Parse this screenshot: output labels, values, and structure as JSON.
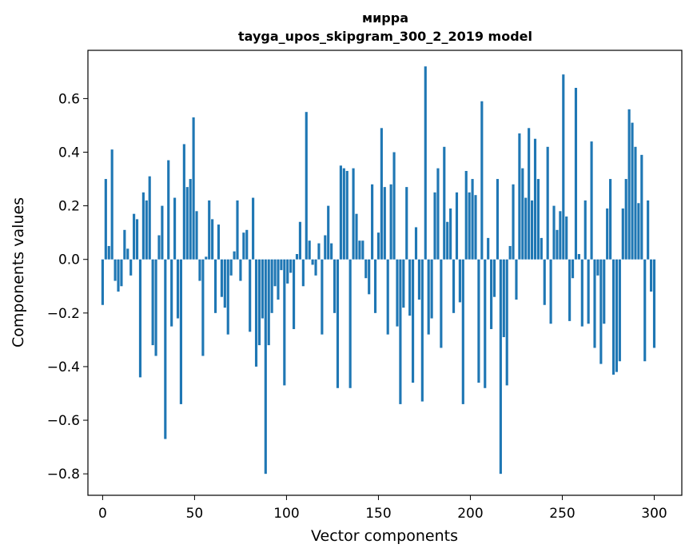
{
  "chart_data": {
    "type": "bar",
    "title": "мирра",
    "subtitle": "tayga_upos_skipgram_300_2_2019 model",
    "xlabel": "Vector components",
    "ylabel": "Components values",
    "xlim": [
      -8,
      315
    ],
    "ylim": [
      -0.88,
      0.78
    ],
    "xticks": [
      0,
      50,
      100,
      150,
      200,
      250,
      300
    ],
    "yticks": [
      -0.8,
      -0.6,
      -0.4,
      -0.2,
      0.0,
      0.2,
      0.4,
      0.6
    ],
    "xtick_labels": [
      "0",
      "50",
      "100",
      "150",
      "200",
      "250",
      "300"
    ],
    "ytick_labels": [
      "−0.8",
      "−0.6",
      "−0.4",
      "−0.2",
      "0.0",
      "0.2",
      "0.4",
      "0.6"
    ],
    "grid": false,
    "bar_color": "#1f77b4",
    "values": [
      -0.17,
      0.3,
      0.05,
      0.41,
      -0.08,
      -0.12,
      -0.1,
      0.11,
      0.04,
      -0.06,
      0.17,
      0.15,
      -0.44,
      0.25,
      0.22,
      0.31,
      -0.32,
      -0.36,
      0.09,
      0.2,
      -0.67,
      0.37,
      -0.25,
      0.23,
      -0.22,
      -0.54,
      0.43,
      0.27,
      0.3,
      0.53,
      0.18,
      -0.08,
      -0.36,
      0.01,
      0.22,
      0.15,
      -0.2,
      0.13,
      -0.14,
      -0.18,
      -0.28,
      -0.06,
      0.03,
      0.22,
      -0.08,
      0.1,
      0.11,
      -0.27,
      0.23,
      -0.4,
      -0.32,
      -0.22,
      -0.8,
      -0.32,
      -0.2,
      -0.1,
      -0.15,
      -0.04,
      -0.47,
      -0.09,
      -0.05,
      -0.26,
      0.02,
      0.14,
      -0.1,
      0.55,
      0.07,
      -0.02,
      -0.06,
      0.06,
      -0.28,
      0.09,
      0.2,
      0.06,
      -0.2,
      -0.48,
      0.35,
      0.34,
      0.33,
      -0.48,
      0.34,
      0.17,
      0.07,
      0.07,
      -0.07,
      -0.13,
      0.28,
      -0.2,
      0.1,
      0.49,
      0.27,
      -0.28,
      0.28,
      0.4,
      -0.25,
      -0.54,
      -0.18,
      0.27,
      -0.21,
      -0.46,
      0.12,
      -0.15,
      -0.53,
      0.72,
      -0.28,
      -0.22,
      0.25,
      0.34,
      -0.33,
      0.42,
      0.14,
      0.19,
      -0.2,
      0.25,
      -0.16,
      -0.54,
      0.33,
      0.25,
      0.3,
      0.24,
      -0.46,
      0.59,
      -0.48,
      0.08,
      -0.26,
      -0.14,
      0.3,
      -0.8,
      -0.29,
      -0.47,
      0.05,
      0.28,
      -0.15,
      0.47,
      0.34,
      0.23,
      0.49,
      0.22,
      0.45,
      0.3,
      0.08,
      -0.17,
      0.42,
      -0.24,
      0.2,
      0.11,
      0.18,
      0.69,
      0.16,
      -0.23,
      -0.07,
      0.64,
      0.02,
      -0.25,
      0.22,
      -0.24,
      0.44,
      -0.33,
      -0.06,
      -0.39,
      -0.24,
      0.19,
      0.3,
      -0.43,
      -0.42,
      -0.38,
      0.19,
      0.3,
      0.56,
      0.51,
      0.42,
      0.21,
      0.39,
      -0.38,
      0.22,
      -0.12,
      -0.33
    ]
  }
}
